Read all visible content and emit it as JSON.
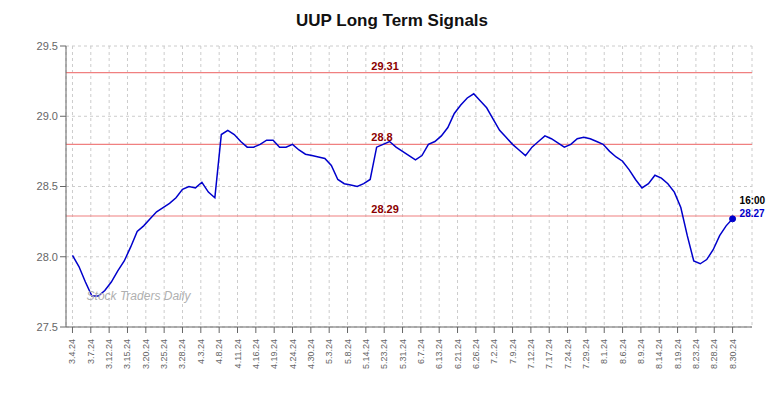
{
  "chart_data": {
    "type": "line",
    "title": "UUP Long Term Signals",
    "watermark": "Stock Traders Daily",
    "color": "#0000cc",
    "values": [
      28.01,
      27.93,
      27.82,
      27.72,
      27.72,
      27.76,
      27.82,
      27.9,
      27.97,
      28.07,
      28.18,
      28.22,
      28.27,
      28.32,
      28.35,
      28.38,
      28.42,
      28.48,
      28.5,
      28.49,
      28.53,
      28.46,
      28.42,
      28.87,
      28.9,
      28.87,
      28.82,
      28.78,
      28.78,
      28.8,
      28.83,
      28.83,
      28.78,
      28.78,
      28.8,
      28.76,
      28.73,
      28.72,
      28.71,
      28.7,
      28.65,
      28.55,
      28.52,
      28.51,
      28.5,
      28.52,
      28.55,
      28.78,
      28.8,
      28.82,
      28.78,
      28.75,
      28.72,
      28.69,
      28.72,
      28.8,
      28.82,
      28.86,
      28.92,
      29.02,
      29.08,
      29.13,
      29.16,
      29.11,
      29.06,
      28.98,
      28.9,
      28.85,
      28.8,
      28.76,
      28.72,
      28.78,
      28.82,
      28.86,
      28.84,
      28.81,
      28.78,
      28.8,
      28.84,
      28.85,
      28.84,
      28.82,
      28.8,
      28.75,
      28.71,
      28.68,
      28.62,
      28.55,
      28.49,
      28.52,
      28.58,
      28.56,
      28.52,
      28.46,
      28.35,
      28.15,
      27.97,
      27.95,
      27.98,
      28.05,
      28.15,
      28.22,
      28.27
    ],
    "xlim": [
      -1,
      105
    ],
    "xticks": [
      {
        "value": 0,
        "label": "3.4.24"
      },
      {
        "value": 2.8333333333,
        "label": "3.7.24"
      },
      {
        "value": 5.6666666667,
        "label": "3.12.24"
      },
      {
        "value": 8.5,
        "label": "3.15.24"
      },
      {
        "value": 11.3333333333,
        "label": "3.20.24"
      },
      {
        "value": 14.1666666667,
        "label": "3.25.24"
      },
      {
        "value": 17,
        "label": "3.28.24"
      },
      {
        "value": 19.8333333333,
        "label": "4.3.24"
      },
      {
        "value": 22.6666666667,
        "label": "4.8.24"
      },
      {
        "value": 25.5,
        "label": "4.11.24"
      },
      {
        "value": 28.3333333333,
        "label": "4.16.24"
      },
      {
        "value": 31.1666666667,
        "label": "4.19.24"
      },
      {
        "value": 34,
        "label": "4.24.24"
      },
      {
        "value": 36.8333333333,
        "label": "4.30.24"
      },
      {
        "value": 39.6666666667,
        "label": "5.3.24"
      },
      {
        "value": 42.5,
        "label": "5.8.24"
      },
      {
        "value": 45.3333333333,
        "label": "5.14.24"
      },
      {
        "value": 48.1666666667,
        "label": "5.23.24"
      },
      {
        "value": 51,
        "label": "5.31.24"
      },
      {
        "value": 53.8333333333,
        "label": "6.7.24"
      },
      {
        "value": 56.6666666667,
        "label": "6.13.24"
      },
      {
        "value": 59.5,
        "label": "6.21.24"
      },
      {
        "value": 62.3333333333,
        "label": "6.26.24"
      },
      {
        "value": 65.1666666667,
        "label": "7.2.24"
      },
      {
        "value": 68,
        "label": "7.9.24"
      },
      {
        "value": 70.8333333333,
        "label": "7.12.24"
      },
      {
        "value": 73.6666666667,
        "label": "7.17.24"
      },
      {
        "value": 76.5,
        "label": "7.24.24"
      },
      {
        "value": 79.3333333333,
        "label": "7.29.24"
      },
      {
        "value": 82.1666666667,
        "label": "8.1.24"
      },
      {
        "value": 85,
        "label": "8.6.24"
      },
      {
        "value": 87.8333333333,
        "label": "8.9.24"
      },
      {
        "value": 90.6666666667,
        "label": "8.14.24"
      },
      {
        "value": 93.5,
        "label": "8.19.24"
      },
      {
        "value": 96.3333333333,
        "label": "8.23.24"
      },
      {
        "value": 99.1666666667,
        "label": "8.28.24"
      },
      {
        "value": 102,
        "label": "8.30.24"
      }
    ],
    "ylim": [
      27.5,
      29.5
    ],
    "yticks": [
      27.5,
      {
        "value": 28.0,
        "label": "28.0"
      },
      28.5,
      {
        "value": 29.0,
        "label": "29.0"
      },
      29.5
    ],
    "grid": true,
    "reference_lines": [
      {
        "value": 29.31,
        "label": "29.31"
      },
      {
        "value": 28.8,
        "label": "28.8"
      },
      {
        "value": 28.29,
        "label": "28.29"
      }
    ],
    "reference_line_color": "#f08080",
    "reference_label_color": "#8b0000",
    "annotations": [
      {
        "text": "16:00",
        "x": 102,
        "y": 28.27,
        "color": "#000000"
      },
      {
        "text": "28.27",
        "x": 102,
        "y": 28.27,
        "color": "#0000cc"
      }
    ]
  }
}
